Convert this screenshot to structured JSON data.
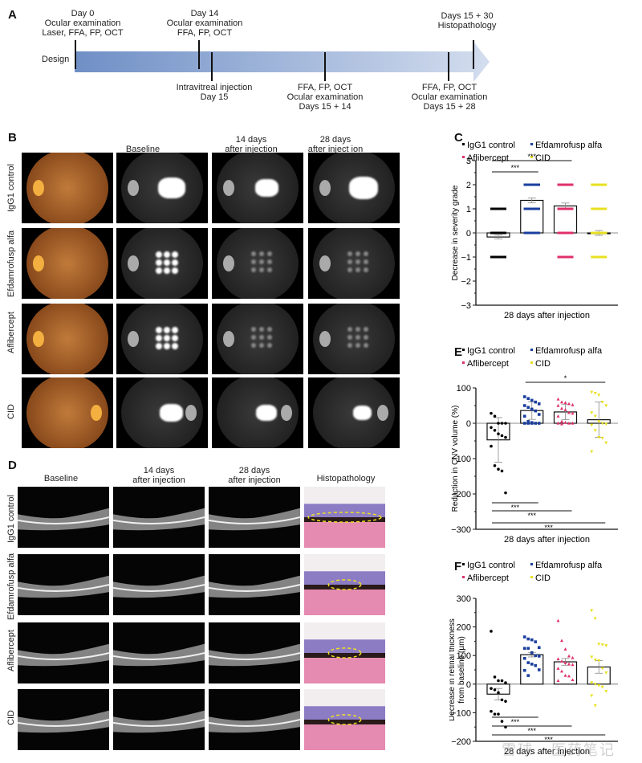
{
  "panels": {
    "A": {
      "letter": "A",
      "design_label": "Design",
      "events_above": [
        {
          "lines": [
            "Day 0",
            "Ocular examination",
            "Laser, FFA, FP, OCT"
          ]
        },
        {
          "lines": [
            "Day 14",
            "Ocular examination",
            "FFA, FP, OCT"
          ]
        },
        {
          "lines": [
            "Days 15 + 30",
            "Histopathology"
          ]
        }
      ],
      "events_below": [
        {
          "lines": [
            "Intravitreal injection",
            "Day 15"
          ]
        },
        {
          "lines": [
            "FFA, FP, OCT",
            "Ocular examination",
            "Days 15 + 14"
          ]
        },
        {
          "lines": [
            "FFA, FP, OCT",
            "Ocular examination",
            "Days 15 + 28"
          ]
        }
      ]
    },
    "B": {
      "letter": "B",
      "columns": [
        {
          "lines": [
            "Baseline"
          ]
        },
        {
          "lines": [
            "14 days",
            "after injection"
          ]
        },
        {
          "lines": [
            "28 days",
            "after inject ion"
          ]
        }
      ],
      "rows": [
        "IgG1 control",
        "Efdamrofusp alfa",
        "Aflibercept",
        "CID"
      ]
    },
    "D": {
      "letter": "D",
      "columns": [
        {
          "lines": [
            "Baseline"
          ]
        },
        {
          "lines": [
            "14 days",
            "after injection"
          ]
        },
        {
          "lines": [
            "28 days",
            "after injection"
          ]
        },
        {
          "lines": [
            "Histopathology"
          ]
        }
      ],
      "rows": [
        "IgG1 control",
        "Efdamrofusp alfa",
        "Aflibercept",
        "CID"
      ]
    },
    "C": {
      "letter": "C"
    },
    "E": {
      "letter": "E"
    },
    "F": {
      "letter": "F"
    }
  },
  "legend": [
    {
      "label": "IgG1 control",
      "color": "#000000",
      "marker": "circle"
    },
    {
      "label": "Efdamrofusp alfa",
      "color": "#1a3e9e",
      "marker": "square"
    },
    {
      "label": "Aflibercept",
      "color": "#e0306a",
      "marker": "triangle"
    },
    {
      "label": "CID",
      "color": "#e8e020",
      "marker": "triangle-down"
    }
  ],
  "chart_data": [
    {
      "panel": "C",
      "type": "bar",
      "title": "",
      "xlabel": "28 days after injection",
      "ylabel": "Decrease in severity grade",
      "ylim": [
        -3,
        3
      ],
      "yticks": [
        -3,
        -2,
        -1,
        0,
        1,
        2,
        3
      ],
      "categories": [
        "IgG1 control",
        "Efdamrofusp alfa",
        "Aflibercept",
        "CID"
      ],
      "values": [
        -0.17,
        1.35,
        1.12,
        0.0
      ],
      "errors": [
        0.08,
        0.1,
        0.12,
        0.1
      ],
      "points": [
        [
          1,
          0,
          0,
          0,
          0,
          0,
          0,
          0,
          -1,
          -1,
          -1,
          -1
        ],
        [
          2,
          2,
          2,
          2,
          2,
          2,
          2,
          2,
          1,
          1,
          1,
          1,
          0,
          0
        ],
        [
          2,
          2,
          2,
          2,
          2,
          2,
          2,
          1,
          1,
          1,
          1,
          0,
          0,
          0,
          -1
        ],
        [
          2,
          1,
          0,
          0,
          0,
          0,
          0,
          0,
          0,
          0,
          0,
          0,
          -1
        ]
      ],
      "significance": [
        {
          "from": 0,
          "to": 1,
          "label": "***"
        },
        {
          "from": 0,
          "to": 2,
          "label": "***"
        }
      ],
      "grid": false,
      "legend_position": "top"
    },
    {
      "panel": "E",
      "type": "bar",
      "title": "",
      "xlabel": "28 days after injection",
      "ylabel": "Reduction in CNV volume (%)",
      "ylim": [
        -300,
        100
      ],
      "yticks": [
        -300,
        -200,
        -100,
        0,
        100
      ],
      "categories": [
        "IgG1 control",
        "Efdamrofusp alfa",
        "Aflibercept",
        "CID"
      ],
      "values": [
        -47,
        36,
        32,
        10
      ],
      "errors": [
        63,
        25,
        22,
        50
      ],
      "points": [
        [
          28,
          20,
          0,
          0,
          0,
          -12,
          -20,
          -30,
          -35,
          -40,
          -65,
          -120,
          -130,
          -135,
          -197
        ],
        [
          75,
          70,
          65,
          60,
          55,
          50,
          45,
          40,
          35,
          25,
          20,
          5,
          2,
          0,
          0,
          0,
          0,
          0
        ],
        [
          68,
          60,
          58,
          55,
          52,
          50,
          42,
          38,
          30,
          28,
          20,
          5,
          2,
          0,
          0,
          0,
          -2
        ],
        [
          88,
          85,
          80,
          60,
          50,
          30,
          20,
          5,
          0,
          -2,
          -5,
          -20,
          -40,
          -42,
          -55,
          -80
        ]
      ],
      "significance": [
        {
          "from": 1,
          "to": 3,
          "label": "*"
        },
        {
          "from": 0,
          "to": 1,
          "label": "***"
        },
        {
          "from": 0,
          "to": 2,
          "label": "***"
        },
        {
          "from": 0,
          "to": 3,
          "label": "***"
        }
      ],
      "grid": false,
      "legend_position": "top"
    },
    {
      "panel": "F",
      "type": "bar",
      "title": "",
      "xlabel": "28 days after injection",
      "ylabel": "Decrease in retinal thickness from baseline (µm)",
      "ylim": [
        -200,
        300
      ],
      "yticks": [
        -200,
        -100,
        0,
        100,
        200,
        300
      ],
      "categories": [
        "IgG1 control",
        "Efdamrofusp alfa",
        "Aflibercept",
        "CID"
      ],
      "values": [
        -35,
        103,
        78,
        60
      ],
      "errors": [
        20,
        8,
        12,
        22
      ],
      "points": [
        [
          185,
          25,
          12,
          12,
          5,
          -15,
          -20,
          -30,
          -55,
          -60,
          -95,
          -105,
          -105,
          -130,
          -150
        ],
        [
          165,
          158,
          155,
          148,
          128,
          125,
          125,
          110,
          100,
          98,
          90,
          75,
          70,
          65,
          50,
          48,
          30
        ],
        [
          222,
          152,
          122,
          98,
          92,
          88,
          80,
          75,
          70,
          68,
          55,
          45,
          30,
          28,
          15,
          12
        ],
        [
          258,
          230,
          140,
          138,
          135,
          95,
          85,
          82,
          55,
          40,
          5,
          0,
          -5,
          -10,
          -25,
          -40,
          -75
        ]
      ],
      "significance": [
        {
          "from": 0,
          "to": 1,
          "label": "***"
        },
        {
          "from": 0,
          "to": 2,
          "label": "***"
        },
        {
          "from": 0,
          "to": 3,
          "label": "***"
        }
      ],
      "grid": false,
      "legend_position": "top"
    }
  ],
  "watermark": "雪球 · 医药笔记"
}
